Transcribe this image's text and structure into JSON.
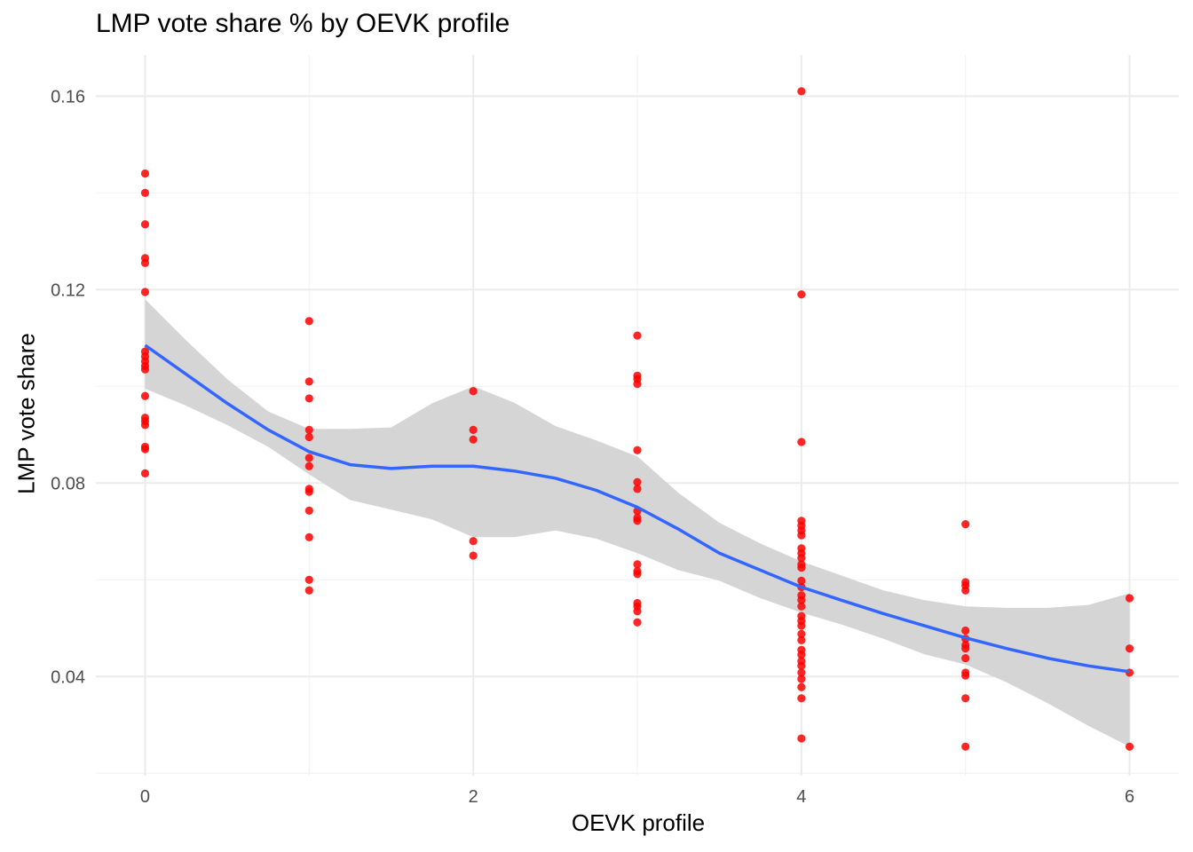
{
  "chart_data": {
    "type": "scatter",
    "title": "LMP vote share % by OEVK profile",
    "xlabel": "OEVK profile",
    "ylabel": "LMP vote share",
    "xlim": [
      -0.3,
      6.3
    ],
    "ylim": [
      0.0195,
      0.1685
    ],
    "x_ticks": [
      0,
      2,
      4,
      6
    ],
    "x_tick_labels": [
      "0",
      "2",
      "4",
      "6"
    ],
    "y_ticks": [
      0.04,
      0.08,
      0.12,
      0.16
    ],
    "y_tick_labels": [
      "0.04",
      "0.08",
      "0.12",
      "0.16"
    ],
    "grid": true,
    "point_color": "#ff0000",
    "smooth_color": "#3366ff",
    "band_color": "#d3d3d3",
    "series": [
      {
        "kind": "points",
        "points": [
          [
            0,
            0.144
          ],
          [
            0,
            0.14
          ],
          [
            0,
            0.1335
          ],
          [
            0,
            0.1265
          ],
          [
            0,
            0.1255
          ],
          [
            0,
            0.1195
          ],
          [
            0,
            0.1072
          ],
          [
            0,
            0.1062
          ],
          [
            0,
            0.1052
          ],
          [
            0,
            0.1042
          ],
          [
            0,
            0.1035
          ],
          [
            0,
            0.098
          ],
          [
            0,
            0.0935
          ],
          [
            0,
            0.0928
          ],
          [
            0,
            0.092
          ],
          [
            0,
            0.0875
          ],
          [
            0,
            0.087
          ],
          [
            0,
            0.082
          ],
          [
            1,
            0.1135
          ],
          [
            1,
            0.101
          ],
          [
            1,
            0.0975
          ],
          [
            1,
            0.091
          ],
          [
            1,
            0.0895
          ],
          [
            1,
            0.0852
          ],
          [
            1,
            0.0835
          ],
          [
            1,
            0.0788
          ],
          [
            1,
            0.0782
          ],
          [
            1,
            0.0743
          ],
          [
            1,
            0.0688
          ],
          [
            1,
            0.06
          ],
          [
            1,
            0.0578
          ],
          [
            2,
            0.099
          ],
          [
            2,
            0.091
          ],
          [
            2,
            0.089
          ],
          [
            2,
            0.068
          ],
          [
            2,
            0.065
          ],
          [
            3,
            0.1105
          ],
          [
            3,
            0.1022
          ],
          [
            3,
            0.1015
          ],
          [
            3,
            0.1005
          ],
          [
            3,
            0.0868
          ],
          [
            3,
            0.0802
          ],
          [
            3,
            0.0788
          ],
          [
            3,
            0.0742
          ],
          [
            3,
            0.0728
          ],
          [
            3,
            0.0722
          ],
          [
            3,
            0.0632
          ],
          [
            3,
            0.0618
          ],
          [
            3,
            0.0612
          ],
          [
            3,
            0.0552
          ],
          [
            3,
            0.0545
          ],
          [
            3,
            0.0535
          ],
          [
            3,
            0.0512
          ],
          [
            4,
            0.161
          ],
          [
            4,
            0.119
          ],
          [
            4,
            0.0885
          ],
          [
            4,
            0.0722
          ],
          [
            4,
            0.0712
          ],
          [
            4,
            0.0702
          ],
          [
            4,
            0.0692
          ],
          [
            4,
            0.0665
          ],
          [
            4,
            0.0655
          ],
          [
            4,
            0.0645
          ],
          [
            4,
            0.0632
          ],
          [
            4,
            0.0625
          ],
          [
            4,
            0.0598
          ],
          [
            4,
            0.0585
          ],
          [
            4,
            0.0568
          ],
          [
            4,
            0.0558
          ],
          [
            4,
            0.0545
          ],
          [
            4,
            0.0525
          ],
          [
            4,
            0.0515
          ],
          [
            4,
            0.0505
          ],
          [
            4,
            0.0488
          ],
          [
            4,
            0.0475
          ],
          [
            4,
            0.0455
          ],
          [
            4,
            0.0445
          ],
          [
            4,
            0.0432
          ],
          [
            4,
            0.0422
          ],
          [
            4,
            0.0408
          ],
          [
            4,
            0.0395
          ],
          [
            4,
            0.0378
          ],
          [
            4,
            0.0355
          ],
          [
            4,
            0.0272
          ],
          [
            5,
            0.0715
          ],
          [
            5,
            0.0595
          ],
          [
            5,
            0.0588
          ],
          [
            5,
            0.0578
          ],
          [
            5,
            0.0495
          ],
          [
            5,
            0.0478
          ],
          [
            5,
            0.0465
          ],
          [
            5,
            0.0458
          ],
          [
            5,
            0.0438
          ],
          [
            5,
            0.0408
          ],
          [
            5,
            0.0402
          ],
          [
            5,
            0.0355
          ],
          [
            5,
            0.0255
          ],
          [
            6,
            0.0562
          ],
          [
            6,
            0.0458
          ],
          [
            6,
            0.0408
          ],
          [
            6,
            0.0255
          ]
        ]
      },
      {
        "kind": "smooth",
        "x": [
          0,
          0.25,
          0.5,
          0.75,
          1,
          1.25,
          1.5,
          1.75,
          2,
          2.25,
          2.5,
          2.75,
          3,
          3.25,
          3.5,
          3.75,
          4,
          4.25,
          4.5,
          4.75,
          5,
          5.25,
          5.5,
          5.75,
          6
        ],
        "y": [
          0.1085,
          0.1025,
          0.0965,
          0.091,
          0.0865,
          0.0838,
          0.083,
          0.0835,
          0.0835,
          0.0825,
          0.081,
          0.0785,
          0.075,
          0.0705,
          0.0655,
          0.062,
          0.0585,
          0.0557,
          0.053,
          0.0505,
          0.048,
          0.0458,
          0.0438,
          0.0422,
          0.041
        ],
        "lower": [
          0.0995,
          0.096,
          0.092,
          0.0875,
          0.0818,
          0.0765,
          0.0745,
          0.0725,
          0.0688,
          0.0688,
          0.0702,
          0.0685,
          0.0655,
          0.062,
          0.0598,
          0.0562,
          0.0532,
          0.0507,
          0.0478,
          0.0446,
          0.0425,
          0.0388,
          0.0345,
          0.0298,
          0.0255
        ],
        "upper": [
          0.118,
          0.1095,
          0.1015,
          0.0948,
          0.0912,
          0.0912,
          0.0915,
          0.0965,
          0.1,
          0.0966,
          0.0918,
          0.0888,
          0.0855,
          0.078,
          0.0718,
          0.0675,
          0.0638,
          0.0608,
          0.0578,
          0.0558,
          0.0545,
          0.0542,
          0.0542,
          0.0548,
          0.0572
        ]
      }
    ]
  }
}
